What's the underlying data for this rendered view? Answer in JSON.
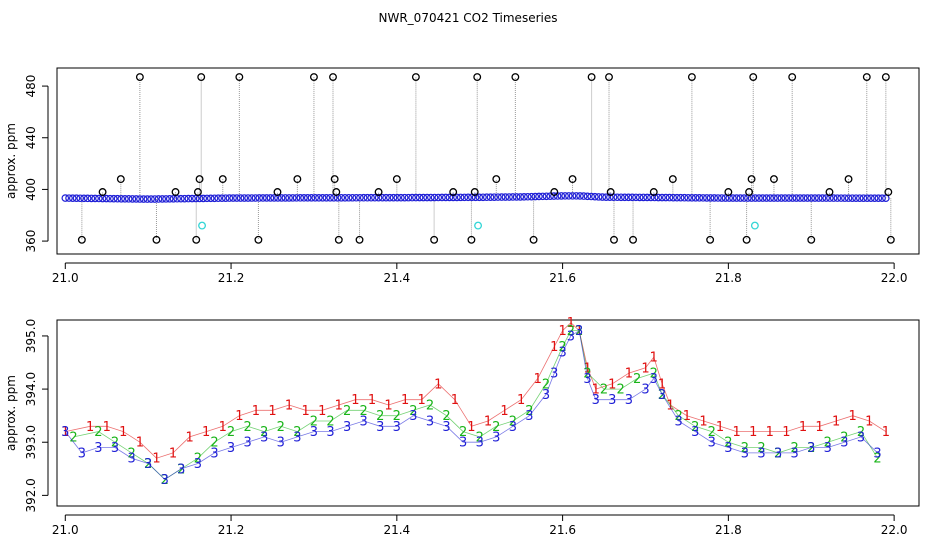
{
  "page_title": "NWR_070421  CO2 Timeseries",
  "colors": {
    "black": "#000000",
    "blue": "#1f1fd6",
    "green": "#18b418",
    "red": "#e01010",
    "cyan": "#33d6d6",
    "gray": "#9a9a9a"
  },
  "chart_data": [
    {
      "type": "scatter",
      "title": "",
      "xlabel": "",
      "ylabel": "approx. ppm",
      "xlim": [
        20.99,
        22.03
      ],
      "ylim": [
        350,
        494
      ],
      "xticks": [
        21.0,
        21.2,
        21.4,
        21.6,
        21.8,
        22.0
      ],
      "xtick_labels": [
        "21.0",
        "21.2",
        "21.4",
        "21.6",
        "21.8",
        "22.0"
      ],
      "yticks": [
        360,
        400,
        440,
        480
      ],
      "ytick_labels": [
        "360",
        "400",
        "440",
        "480"
      ],
      "grid": false,
      "baseline": {
        "name": "",
        "color": "#1f1fd6",
        "x": [
          21.0,
          21.1,
          21.2,
          21.3,
          21.4,
          21.5,
          21.55,
          21.6,
          21.62,
          21.65,
          21.7,
          21.8,
          21.9,
          21.99
        ],
        "y": [
          393.3,
          392.5,
          393.3,
          393.5,
          393.6,
          393.9,
          394.2,
          395.0,
          395.0,
          394.0,
          393.8,
          393.3,
          393.3,
          393.2
        ]
      },
      "outliers": [
        {
          "x": 21.02,
          "y": 361
        },
        {
          "x": 21.045,
          "y": 398
        },
        {
          "x": 21.067,
          "y": 408
        },
        {
          "x": 21.09,
          "y": 487
        },
        {
          "x": 21.11,
          "y": 361
        },
        {
          "x": 21.133,
          "y": 398
        },
        {
          "x": 21.158,
          "y": 361
        },
        {
          "x": 21.16,
          "y": 398
        },
        {
          "x": 21.162,
          "y": 408
        },
        {
          "x": 21.164,
          "y": 487
        },
        {
          "x": 21.19,
          "y": 408
        },
        {
          "x": 21.21,
          "y": 487
        },
        {
          "x": 21.233,
          "y": 361
        },
        {
          "x": 21.256,
          "y": 398
        },
        {
          "x": 21.28,
          "y": 408
        },
        {
          "x": 21.3,
          "y": 487
        },
        {
          "x": 21.323,
          "y": 487
        },
        {
          "x": 21.325,
          "y": 408
        },
        {
          "x": 21.327,
          "y": 398
        },
        {
          "x": 21.33,
          "y": 361
        },
        {
          "x": 21.355,
          "y": 361
        },
        {
          "x": 21.378,
          "y": 398
        },
        {
          "x": 21.4,
          "y": 408
        },
        {
          "x": 21.423,
          "y": 487
        },
        {
          "x": 21.445,
          "y": 361
        },
        {
          "x": 21.468,
          "y": 398
        },
        {
          "x": 21.49,
          "y": 361
        },
        {
          "x": 21.494,
          "y": 398
        },
        {
          "x": 21.497,
          "y": 487
        },
        {
          "x": 21.52,
          "y": 408
        },
        {
          "x": 21.543,
          "y": 487
        },
        {
          "x": 21.565,
          "y": 361
        },
        {
          "x": 21.59,
          "y": 398
        },
        {
          "x": 21.612,
          "y": 408
        },
        {
          "x": 21.635,
          "y": 487
        },
        {
          "x": 21.656,
          "y": 487
        },
        {
          "x": 21.658,
          "y": 398
        },
        {
          "x": 21.662,
          "y": 361
        },
        {
          "x": 21.685,
          "y": 361
        },
        {
          "x": 21.71,
          "y": 398
        },
        {
          "x": 21.733,
          "y": 408
        },
        {
          "x": 21.756,
          "y": 487
        },
        {
          "x": 21.778,
          "y": 361
        },
        {
          "x": 21.8,
          "y": 398
        },
        {
          "x": 21.822,
          "y": 361
        },
        {
          "x": 21.825,
          "y": 398
        },
        {
          "x": 21.828,
          "y": 408
        },
        {
          "x": 21.83,
          "y": 487
        },
        {
          "x": 21.855,
          "y": 408
        },
        {
          "x": 21.877,
          "y": 487
        },
        {
          "x": 21.9,
          "y": 361
        },
        {
          "x": 21.922,
          "y": 398
        },
        {
          "x": 21.945,
          "y": 408
        },
        {
          "x": 21.967,
          "y": 487
        },
        {
          "x": 21.99,
          "y": 487
        },
        {
          "x": 21.993,
          "y": 398
        },
        {
          "x": 21.996,
          "y": 361
        }
      ],
      "cyan_points": [
        {
          "x": 21.165,
          "y": 372
        },
        {
          "x": 21.498,
          "y": 372
        },
        {
          "x": 21.832,
          "y": 372
        }
      ]
    },
    {
      "type": "scatter",
      "title": "",
      "xlabel": "",
      "ylabel": "approx. ppm",
      "xlim": [
        20.99,
        22.03
      ],
      "ylim": [
        391.8,
        395.3
      ],
      "xticks": [
        21.0,
        21.2,
        21.4,
        21.6,
        21.8,
        22.0
      ],
      "xtick_labels": [
        "21.0",
        "21.2",
        "21.4",
        "21.6",
        "21.8",
        "22.0"
      ],
      "yticks": [
        392.0,
        393.0,
        394.0,
        395.0
      ],
      "ytick_labels": [
        "392.0",
        "393.0",
        "394.0",
        "395.0"
      ],
      "grid": false,
      "series": [
        {
          "name": "",
          "marker": "1",
          "color": "#e01010",
          "x": [
            21.0,
            21.03,
            21.05,
            21.07,
            21.09,
            21.11,
            21.13,
            21.15,
            21.17,
            21.19,
            21.21,
            21.23,
            21.25,
            21.27,
            21.29,
            21.31,
            21.33,
            21.35,
            21.37,
            21.39,
            21.41,
            21.43,
            21.45,
            21.47,
            21.49,
            21.51,
            21.53,
            21.55,
            21.57,
            21.59,
            21.6,
            21.61,
            21.62,
            21.63,
            21.64,
            21.66,
            21.68,
            21.7,
            21.71,
            21.72,
            21.73,
            21.75,
            21.77,
            21.79,
            21.81,
            21.83,
            21.85,
            21.87,
            21.89,
            21.91,
            21.93,
            21.95,
            21.97,
            21.99
          ],
          "y": [
            393.2,
            393.3,
            393.3,
            393.2,
            393.0,
            392.7,
            392.8,
            393.1,
            393.2,
            393.3,
            393.5,
            393.6,
            393.6,
            393.7,
            393.6,
            393.6,
            393.7,
            393.8,
            393.8,
            393.7,
            393.8,
            393.8,
            394.1,
            393.8,
            393.3,
            393.4,
            393.6,
            393.8,
            394.2,
            394.8,
            395.1,
            395.25,
            395.1,
            394.4,
            394.0,
            394.1,
            394.3,
            394.4,
            394.6,
            394.1,
            393.7,
            393.5,
            393.4,
            393.3,
            393.2,
            393.2,
            393.2,
            393.2,
            393.3,
            393.3,
            393.4,
            393.5,
            393.4,
            393.2
          ]
        },
        {
          "name": "",
          "marker": "2",
          "color": "#18b418",
          "x": [
            21.01,
            21.04,
            21.06,
            21.08,
            21.1,
            21.12,
            21.14,
            21.16,
            21.18,
            21.2,
            21.22,
            21.24,
            21.26,
            21.28,
            21.3,
            21.32,
            21.34,
            21.36,
            21.38,
            21.4,
            21.42,
            21.44,
            21.46,
            21.48,
            21.5,
            21.52,
            21.54,
            21.56,
            21.58,
            21.6,
            21.61,
            21.62,
            21.63,
            21.65,
            21.67,
            21.69,
            21.71,
            21.72,
            21.74,
            21.76,
            21.78,
            21.8,
            21.82,
            21.84,
            21.86,
            21.88,
            21.9,
            21.92,
            21.94,
            21.96,
            21.98
          ],
          "y": [
            393.1,
            393.2,
            393.0,
            392.8,
            392.6,
            392.3,
            392.5,
            392.7,
            393.0,
            393.2,
            393.3,
            393.2,
            393.3,
            393.2,
            393.4,
            393.4,
            393.6,
            393.6,
            393.5,
            393.5,
            393.6,
            393.7,
            393.5,
            393.2,
            393.1,
            393.3,
            393.4,
            393.6,
            394.1,
            394.8,
            395.1,
            395.1,
            394.3,
            394.0,
            394.0,
            394.2,
            394.3,
            393.9,
            393.5,
            393.3,
            393.2,
            393.0,
            392.9,
            392.9,
            392.8,
            392.9,
            392.9,
            393.0,
            393.1,
            393.2,
            392.7
          ]
        },
        {
          "name": "",
          "marker": "3",
          "color": "#1f1fd6",
          "x": [
            21.0,
            21.02,
            21.04,
            21.06,
            21.08,
            21.1,
            21.12,
            21.14,
            21.16,
            21.18,
            21.2,
            21.22,
            21.24,
            21.26,
            21.28,
            21.3,
            21.32,
            21.34,
            21.36,
            21.38,
            21.4,
            21.42,
            21.44,
            21.46,
            21.48,
            21.5,
            21.52,
            21.54,
            21.56,
            21.58,
            21.59,
            21.6,
            21.61,
            21.62,
            21.63,
            21.64,
            21.66,
            21.68,
            21.7,
            21.71,
            21.72,
            21.74,
            21.76,
            21.78,
            21.8,
            21.82,
            21.84,
            21.86,
            21.88,
            21.9,
            21.92,
            21.94,
            21.96,
            21.98
          ],
          "y": [
            393.2,
            392.8,
            392.9,
            392.9,
            392.7,
            392.6,
            392.3,
            392.5,
            392.6,
            392.8,
            392.9,
            393.0,
            393.1,
            393.0,
            393.1,
            393.2,
            393.2,
            393.3,
            393.4,
            393.3,
            393.3,
            393.5,
            393.4,
            393.3,
            393.0,
            393.0,
            393.1,
            393.3,
            393.5,
            393.9,
            394.3,
            394.7,
            395.0,
            395.1,
            394.2,
            393.8,
            393.8,
            393.8,
            394.0,
            394.2,
            393.9,
            393.4,
            393.2,
            393.0,
            392.9,
            392.8,
            392.8,
            392.8,
            392.8,
            392.9,
            392.9,
            393.0,
            393.1,
            392.8
          ]
        }
      ]
    }
  ]
}
